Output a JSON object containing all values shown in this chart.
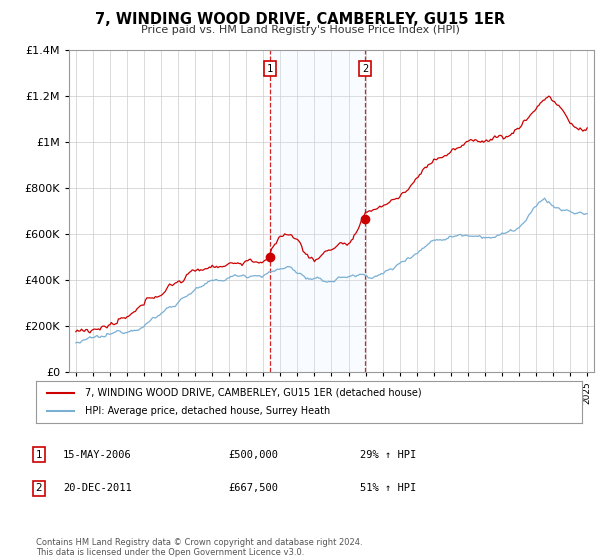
{
  "title": "7, WINDING WOOD DRIVE, CAMBERLEY, GU15 1ER",
  "subtitle": "Price paid vs. HM Land Registry's House Price Index (HPI)",
  "legend_line1": "7, WINDING WOOD DRIVE, CAMBERLEY, GU15 1ER (detached house)",
  "legend_line2": "HPI: Average price, detached house, Surrey Heath",
  "annotation1_label": "1",
  "annotation1_date": "15-MAY-2006",
  "annotation1_price": "£500,000",
  "annotation1_hpi": "29% ↑ HPI",
  "annotation2_label": "2",
  "annotation2_date": "20-DEC-2011",
  "annotation2_price": "£667,500",
  "annotation2_hpi": "51% ↑ HPI",
  "footnote": "Contains HM Land Registry data © Crown copyright and database right 2024.\nThis data is licensed under the Open Government Licence v3.0.",
  "red_color": "#cc0000",
  "blue_color": "#7aafd4",
  "shade_color": "#ddeeff",
  "annotation_box_color": "#cc0000",
  "grid_color": "#cccccc",
  "ylim": [
    0,
    1400000
  ],
  "yticks": [
    0,
    200000,
    400000,
    600000,
    800000,
    1000000,
    1200000,
    1400000
  ],
  "sale1_year": 2006.38,
  "sale1_price": 500000,
  "sale2_year": 2011.96,
  "sale2_price": 667500,
  "xstart": 1995,
  "xend": 2025
}
